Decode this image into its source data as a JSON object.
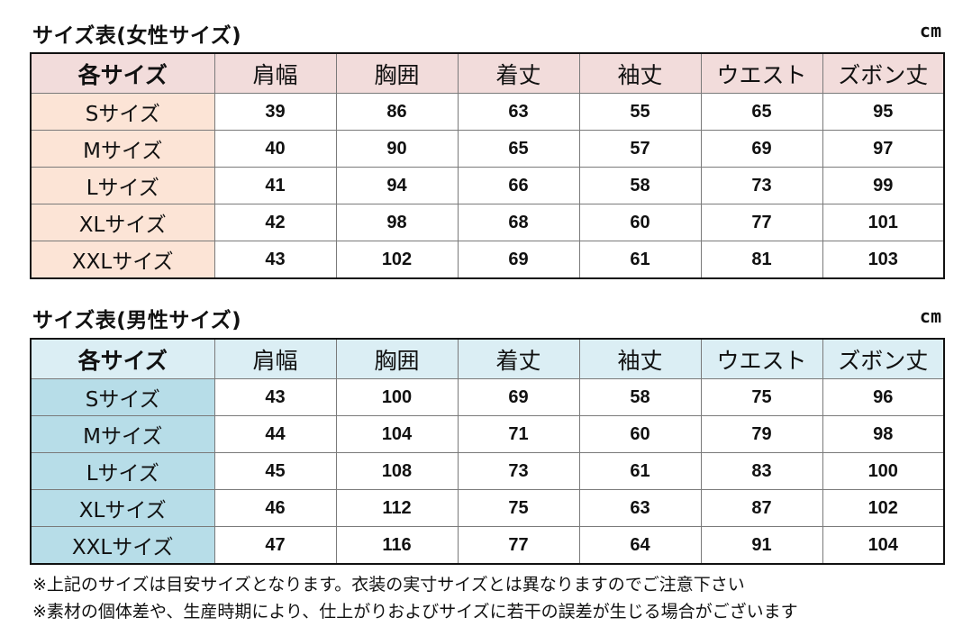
{
  "women": {
    "title": "サイズ表(女性サイズ)",
    "unit": "cm",
    "header": [
      "各サイズ",
      "肩幅",
      "胸囲",
      "着丈",
      "袖丈",
      "ウエスト",
      "ズボン丈"
    ],
    "rows": [
      [
        "Sサイズ",
        "39",
        "86",
        "63",
        "55",
        "65",
        "95"
      ],
      [
        "Mサイズ",
        "40",
        "90",
        "65",
        "57",
        "69",
        "97"
      ],
      [
        "Lサイズ",
        "41",
        "94",
        "66",
        "58",
        "73",
        "99"
      ],
      [
        "XLサイズ",
        "42",
        "98",
        "68",
        "60",
        "77",
        "101"
      ],
      [
        "XXLサイズ",
        "43",
        "102",
        "69",
        "61",
        "81",
        "103"
      ]
    ]
  },
  "men": {
    "title": "サイズ表(男性サイズ)",
    "unit": "cm",
    "header": [
      "各サイズ",
      "肩幅",
      "胸囲",
      "着丈",
      "袖丈",
      "ウエスト",
      "ズボン丈"
    ],
    "rows": [
      [
        "Sサイズ",
        "43",
        "100",
        "69",
        "58",
        "75",
        "96"
      ],
      [
        "Mサイズ",
        "44",
        "104",
        "71",
        "60",
        "79",
        "98"
      ],
      [
        "Lサイズ",
        "45",
        "108",
        "73",
        "61",
        "83",
        "100"
      ],
      [
        "XLサイズ",
        "46",
        "112",
        "75",
        "63",
        "87",
        "102"
      ],
      [
        "XXLサイズ",
        "47",
        "116",
        "77",
        "64",
        "91",
        "104"
      ]
    ]
  },
  "notes": [
    "※上記のサイズは目安サイズとなります。衣装の実寸サイズとは異なりますのでご注意下さい",
    "※素材の個体差や、生産時期により、仕上がりおよびサイズに若干の誤差が生じる場合がございます"
  ],
  "colors": {
    "women_header_bg": "#f2dcdb",
    "women_label_bg": "#fce4d6",
    "men_header_bg": "#dbeef4",
    "men_label_bg": "#b7dde8"
  }
}
